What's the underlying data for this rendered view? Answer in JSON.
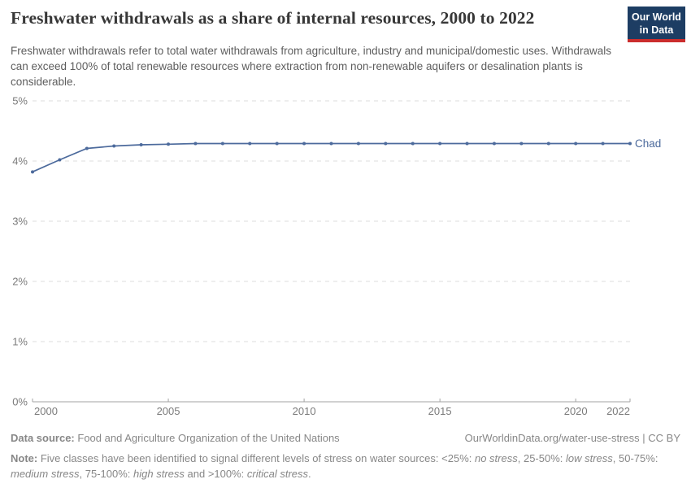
{
  "header": {
    "title": "Freshwater withdrawals as a share of internal resources, 2000 to 2022",
    "subtitle": "Freshwater withdrawals refer to total water withdrawals from agriculture, industry and municipal/domestic uses. Withdrawals can exceed 100% of total renewable resources where extraction from non-renewable aquifers or desalination plants is considerable.",
    "logo": {
      "line1": "Our World",
      "line2": "in Data",
      "bg_color": "#1d3d63",
      "accent_color": "#cb2d2d"
    }
  },
  "chart_data": {
    "type": "line",
    "title": "Freshwater withdrawals as a share of internal resources, 2000 to 2022",
    "xlabel": "",
    "ylabel": "",
    "x": [
      2000,
      2001,
      2002,
      2003,
      2004,
      2005,
      2006,
      2007,
      2008,
      2009,
      2010,
      2011,
      2012,
      2013,
      2014,
      2015,
      2016,
      2017,
      2018,
      2019,
      2020,
      2021,
      2022
    ],
    "series": [
      {
        "name": "Chad",
        "color": "#4C6A9C",
        "values": [
          3.82,
          4.02,
          4.21,
          4.25,
          4.27,
          4.28,
          4.29,
          4.29,
          4.29,
          4.29,
          4.29,
          4.29,
          4.29,
          4.29,
          4.29,
          4.29,
          4.29,
          4.29,
          4.29,
          4.29,
          4.29,
          4.29,
          4.29
        ]
      }
    ],
    "xlim": [
      2000,
      2022
    ],
    "ylim": [
      0,
      5
    ],
    "xticks": [
      2000,
      2005,
      2010,
      2015,
      2020,
      2022
    ],
    "yticks": [
      0,
      1,
      2,
      3,
      4,
      5
    ],
    "ytick_suffix": "%",
    "grid": "horizontal-dashed",
    "legend_position": "end-of-line",
    "colors": {
      "gridline": "#dcdcdc",
      "axis": "#a3a3a3",
      "tick_label": "#7b7b7b"
    }
  },
  "footer": {
    "source_label": "Data source:",
    "source_text": "Food and Agriculture Organization of the United Nations",
    "attribution": "OurWorldinData.org/water-use-stress | CC BY",
    "note_label": "Note:",
    "note_segments": [
      {
        "text": "Five classes have been identified to signal different levels of stress on water sources: <25%: ",
        "italic": false
      },
      {
        "text": "no stress",
        "italic": true
      },
      {
        "text": ", 25-50%: ",
        "italic": false
      },
      {
        "text": "low stress",
        "italic": true
      },
      {
        "text": ", 50-75%: ",
        "italic": false
      },
      {
        "text": "medium stress",
        "italic": true
      },
      {
        "text": ", 75-100%: ",
        "italic": false
      },
      {
        "text": "high stress",
        "italic": true
      },
      {
        "text": " and >100%: ",
        "italic": false
      },
      {
        "text": "critical stress",
        "italic": true
      },
      {
        "text": ".",
        "italic": false
      }
    ]
  }
}
